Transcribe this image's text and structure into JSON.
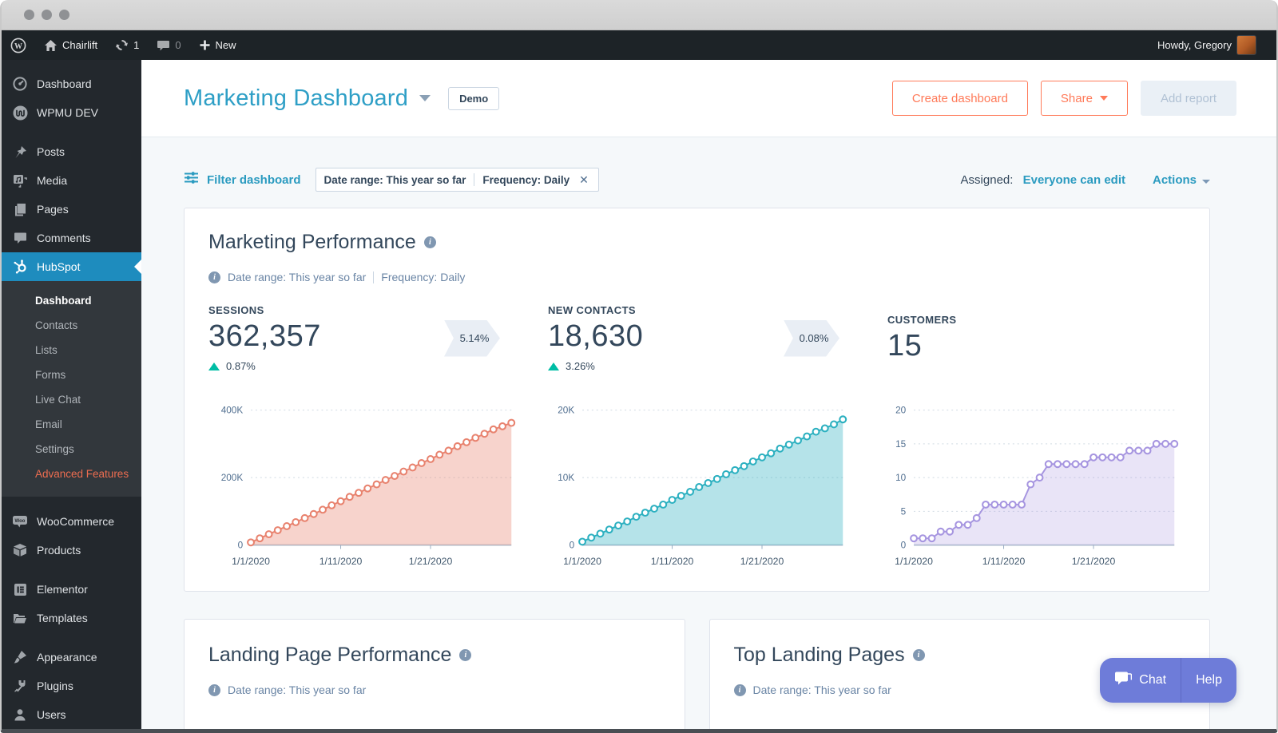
{
  "admin_bar": {
    "site_name": "Chairlift",
    "updates_count": "1",
    "comments_count": "0",
    "new_label": "New",
    "howdy": "Howdy, Gregory"
  },
  "sidebar": {
    "items": [
      {
        "label": "Dashboard"
      },
      {
        "label": "WPMU DEV"
      },
      {
        "label": "Posts"
      },
      {
        "label": "Media"
      },
      {
        "label": "Pages"
      },
      {
        "label": "Comments"
      },
      {
        "label": "HubSpot"
      },
      {
        "label": "WooCommerce"
      },
      {
        "label": "Products"
      },
      {
        "label": "Elementor"
      },
      {
        "label": "Templates"
      },
      {
        "label": "Appearance"
      },
      {
        "label": "Plugins"
      },
      {
        "label": "Users"
      }
    ],
    "hubspot_submenu": [
      {
        "label": "Dashboard"
      },
      {
        "label": "Contacts"
      },
      {
        "label": "Lists"
      },
      {
        "label": "Forms"
      },
      {
        "label": "Live Chat"
      },
      {
        "label": "Email"
      },
      {
        "label": "Settings"
      },
      {
        "label": "Advanced Features"
      }
    ]
  },
  "header": {
    "title": "Marketing Dashboard",
    "demo_badge": "Demo",
    "create_dashboard": "Create dashboard",
    "share": "Share",
    "add_report": "Add report"
  },
  "filter_bar": {
    "filter_link": "Filter dashboard",
    "chip_date": "Date range: This year so far",
    "chip_frequency": "Frequency: Daily",
    "assigned_label": "Assigned:",
    "assigned_value": "Everyone can edit",
    "actions": "Actions"
  },
  "performance_card": {
    "title": "Marketing Performance",
    "date_range": "Date range: This year so far",
    "frequency": "Frequency: Daily",
    "metrics": [
      {
        "label": "SESSIONS",
        "value": "362,357",
        "delta": "0.87%"
      },
      {
        "label": "NEW CONTACTS",
        "value": "18,630",
        "delta": "3.26%"
      },
      {
        "label": "CUSTOMERS",
        "value": "15"
      }
    ],
    "conversion_rates": [
      "5.14%",
      "0.08%"
    ]
  },
  "chart_data": [
    {
      "type": "area",
      "title": "Sessions over time",
      "color": "#e8826e",
      "fill": "rgba(232,130,110,0.35)",
      "ylim": [
        0,
        400000
      ],
      "yticks": [
        {
          "v": 400000,
          "label": "400K"
        },
        {
          "v": 200000,
          "label": "200K"
        },
        {
          "v": 0,
          "label": "0"
        }
      ],
      "x_tick_labels": [
        {
          "i": 0,
          "label": "1/1/2020"
        },
        {
          "i": 10,
          "label": "1/11/2020"
        },
        {
          "i": 20,
          "label": "1/21/2020"
        }
      ],
      "values": [
        8000,
        20000,
        32000,
        44000,
        56000,
        68000,
        80000,
        92000,
        105000,
        118000,
        130000,
        143000,
        155000,
        168000,
        180000,
        193000,
        205000,
        218000,
        230000,
        243000,
        255000,
        268000,
        280000,
        293000,
        305000,
        318000,
        330000,
        343000,
        352000,
        362357
      ]
    },
    {
      "type": "area",
      "title": "New contacts over time",
      "color": "#2cb0c0",
      "fill": "rgba(44,176,192,0.35)",
      "ylim": [
        0,
        20000
      ],
      "yticks": [
        {
          "v": 20000,
          "label": "20K"
        },
        {
          "v": 10000,
          "label": "10K"
        },
        {
          "v": 0,
          "label": "0"
        }
      ],
      "x_tick_labels": [
        {
          "i": 0,
          "label": "1/1/2020"
        },
        {
          "i": 10,
          "label": "1/11/2020"
        },
        {
          "i": 20,
          "label": "1/21/2020"
        }
      ],
      "values": [
        500,
        1100,
        1700,
        2300,
        2900,
        3500,
        4200,
        4800,
        5400,
        6000,
        6700,
        7300,
        7900,
        8600,
        9200,
        9800,
        10500,
        11100,
        11700,
        12400,
        13000,
        13600,
        14300,
        14900,
        15500,
        16100,
        16800,
        17300,
        17900,
        18630
      ]
    },
    {
      "type": "area",
      "title": "Customers over time",
      "color": "#a695e0",
      "fill": "rgba(166,149,224,0.25)",
      "ylim": [
        0,
        20
      ],
      "yticks": [
        {
          "v": 20,
          "label": "20"
        },
        {
          "v": 15,
          "label": "15"
        },
        {
          "v": 10,
          "label": "10"
        },
        {
          "v": 5,
          "label": "5"
        },
        {
          "v": 0,
          "label": "0"
        }
      ],
      "x_tick_labels": [
        {
          "i": 0,
          "label": "1/1/2020"
        },
        {
          "i": 10,
          "label": "1/11/2020"
        },
        {
          "i": 20,
          "label": "1/21/2020"
        }
      ],
      "values": [
        1,
        1,
        1,
        2,
        2,
        3,
        3,
        4,
        6,
        6,
        6,
        6,
        6,
        9,
        10,
        12,
        12,
        12,
        12,
        12,
        13,
        13,
        13,
        13,
        14,
        14,
        14,
        15,
        15,
        15
      ]
    }
  ],
  "bottom_cards": [
    {
      "title": "Landing Page Performance",
      "date_range": "Date range: This year so far"
    },
    {
      "title": "Top Landing Pages",
      "date_range": "Date range: This year so far"
    }
  ],
  "chat_widget": {
    "chat": "Chat",
    "help": "Help"
  },
  "colors": {
    "accent_teal": "#2b9bc0",
    "accent_orange": "#ff7a59",
    "navy_text": "#33475b",
    "delta_green": "#00bda5",
    "wp_active_blue": "#1e8cbe",
    "chat_purple": "#6e7cd9"
  }
}
